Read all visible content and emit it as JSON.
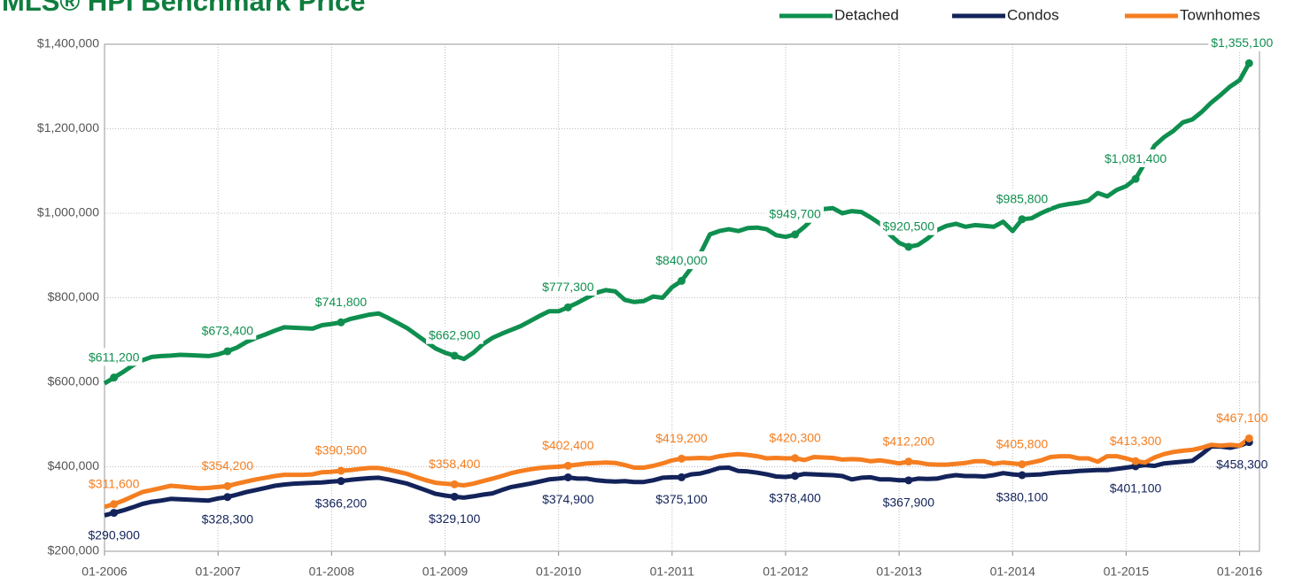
{
  "chart_data": {
    "type": "line",
    "title": "MLS® HPI Benchmark Price",
    "categories": [
      "01-2006",
      null,
      null,
      null,
      null,
      null,
      null,
      null,
      null,
      null,
      null,
      null,
      "01-2007",
      null,
      null,
      null,
      null,
      null,
      null,
      null,
      null,
      null,
      null,
      null,
      "01-2008",
      null,
      null,
      null,
      null,
      null,
      null,
      null,
      null,
      null,
      null,
      null,
      "01-2009",
      null,
      null,
      null,
      null,
      null,
      null,
      null,
      null,
      null,
      null,
      null,
      "01-2010",
      null,
      null,
      null,
      null,
      null,
      null,
      null,
      null,
      null,
      null,
      null,
      "01-2011",
      null,
      null,
      null,
      null,
      null,
      null,
      null,
      null,
      null,
      null,
      null,
      "01-2012",
      null,
      null,
      null,
      null,
      null,
      null,
      null,
      null,
      null,
      null,
      null,
      "01-2013",
      null,
      null,
      null,
      null,
      null,
      null,
      null,
      null,
      null,
      null,
      null,
      "01-2014",
      null,
      null,
      null,
      null,
      null,
      null,
      null,
      null,
      null,
      null,
      null,
      "01-2015",
      null,
      null,
      null,
      null,
      null,
      null,
      null,
      null,
      null,
      null,
      null,
      "01-2016",
      null
    ],
    "series": [
      {
        "name": "Detached",
        "color": "#0f8f4f",
        "label_pos": "above",
        "values": [
          597000,
          611200,
          625000,
          640000,
          652000,
          660000,
          662000,
          663000,
          665000,
          664000,
          663000,
          662000,
          666000,
          673400,
          682000,
          695000,
          705000,
          713000,
          722000,
          730000,
          729000,
          728000,
          727000,
          735000,
          738000,
          741800,
          750000,
          755000,
          760000,
          763000,
          752000,
          740000,
          728000,
          712000,
          696000,
          680000,
          670000,
          662900,
          655000,
          670000,
          690000,
          705000,
          715000,
          724000,
          733000,
          745000,
          757000,
          768000,
          768000,
          777300,
          788000,
          800000,
          812000,
          818000,
          815000,
          795000,
          790000,
          792000,
          803000,
          800000,
          825000,
          840000,
          870000,
          905000,
          950000,
          958000,
          962000,
          958000,
          965000,
          966000,
          962000,
          948000,
          944000,
          949700,
          968000,
          990000,
          1010000,
          1012000,
          1000000,
          1005000,
          1003000,
          990000,
          975000,
          950000,
          930000,
          920500,
          925000,
          940000,
          960000,
          970000,
          975000,
          968000,
          972000,
          970000,
          968000,
          980000,
          958000,
          985800,
          988000,
          1000000,
          1010000,
          1018000,
          1022000,
          1025000,
          1030000,
          1048000,
          1040000,
          1055000,
          1064000,
          1081400,
          1120000,
          1160000,
          1180000,
          1195000,
          1215000,
          1222000,
          1240000,
          1262000,
          1280000,
          1300000,
          1315000,
          1355100
        ],
        "value_labels": [
          null,
          "$611,200",
          null,
          null,
          null,
          null,
          null,
          null,
          null,
          null,
          null,
          null,
          null,
          "$673,400",
          null,
          null,
          null,
          null,
          null,
          null,
          null,
          null,
          null,
          null,
          null,
          "$741,800",
          null,
          null,
          null,
          null,
          null,
          null,
          null,
          null,
          null,
          null,
          null,
          "$662,900",
          null,
          null,
          null,
          null,
          null,
          null,
          null,
          null,
          null,
          null,
          null,
          "$777,300",
          null,
          null,
          null,
          null,
          null,
          null,
          null,
          null,
          null,
          null,
          null,
          "$840,000",
          null,
          null,
          null,
          null,
          null,
          null,
          null,
          null,
          null,
          null,
          null,
          "$949,700",
          null,
          null,
          null,
          null,
          null,
          null,
          null,
          null,
          null,
          null,
          null,
          "$920,500",
          null,
          null,
          null,
          null,
          null,
          null,
          null,
          null,
          null,
          null,
          null,
          "$985,800",
          null,
          null,
          null,
          null,
          null,
          null,
          null,
          null,
          null,
          null,
          null,
          "$1,081,400",
          null,
          null,
          null,
          null,
          null,
          null,
          null,
          null,
          null,
          null,
          null,
          "$1,355,100"
        ]
      },
      {
        "name": "Condos",
        "color": "#13235a",
        "label_pos": "below",
        "values": [
          285000,
          290900,
          297000,
          304000,
          312000,
          317000,
          320000,
          324000,
          323000,
          322000,
          321000,
          320000,
          325000,
          328300,
          334000,
          340000,
          345000,
          350000,
          355000,
          358000,
          360000,
          361000,
          362000,
          363000,
          365000,
          366200,
          369000,
          371000,
          373000,
          374000,
          370000,
          365000,
          360000,
          352000,
          344000,
          336000,
          332000,
          329100,
          327000,
          330000,
          334000,
          337000,
          345000,
          352000,
          356000,
          360000,
          365000,
          370000,
          372000,
          374900,
          372000,
          372000,
          368000,
          366000,
          365000,
          366000,
          364000,
          364000,
          368000,
          374000,
          375000,
          375100,
          382000,
          384000,
          390000,
          397000,
          398000,
          390000,
          389000,
          386000,
          382000,
          377000,
          376000,
          378400,
          383000,
          382000,
          381000,
          380000,
          378000,
          370000,
          374000,
          375000,
          370000,
          370000,
          368000,
          367900,
          372000,
          371000,
          372000,
          377000,
          380000,
          378000,
          378000,
          377000,
          380000,
          385000,
          382000,
          380100,
          381000,
          382000,
          385000,
          387000,
          388000,
          390000,
          391000,
          392000,
          392000,
          395000,
          398000,
          401100,
          404000,
          402000,
          408000,
          410000,
          412000,
          414000,
          430000,
          448000,
          448000,
          445000,
          450000,
          458300
        ],
        "value_labels": [
          null,
          "$290,900",
          null,
          null,
          null,
          null,
          null,
          null,
          null,
          null,
          null,
          null,
          null,
          "$328,300",
          null,
          null,
          null,
          null,
          null,
          null,
          null,
          null,
          null,
          null,
          null,
          "$366,200",
          null,
          null,
          null,
          null,
          null,
          null,
          null,
          null,
          null,
          null,
          null,
          "$329,100",
          null,
          null,
          null,
          null,
          null,
          null,
          null,
          null,
          null,
          null,
          null,
          "$374,900",
          null,
          null,
          null,
          null,
          null,
          null,
          null,
          null,
          null,
          null,
          null,
          "$375,100",
          null,
          null,
          null,
          null,
          null,
          null,
          null,
          null,
          null,
          null,
          null,
          "$378,400",
          null,
          null,
          null,
          null,
          null,
          null,
          null,
          null,
          null,
          null,
          null,
          "$367,900",
          null,
          null,
          null,
          null,
          null,
          null,
          null,
          null,
          null,
          null,
          null,
          "$380,100",
          null,
          null,
          null,
          null,
          null,
          null,
          null,
          null,
          null,
          null,
          null,
          "$401,100",
          null,
          null,
          null,
          null,
          null,
          null,
          null,
          null,
          null,
          null,
          null,
          "$458,300"
        ]
      },
      {
        "name": "Townhomes",
        "color": "#f57e20",
        "label_pos": "above",
        "values": [
          305000,
          311600,
          320000,
          330000,
          340000,
          345000,
          350000,
          355000,
          353000,
          351000,
          349000,
          350000,
          352000,
          354200,
          360000,
          365000,
          370000,
          374000,
          378000,
          381000,
          381000,
          381000,
          382000,
          387000,
          388000,
          390500,
          392000,
          395000,
          397000,
          397000,
          393000,
          388000,
          383000,
          375000,
          368000,
          362000,
          360000,
          358400,
          356000,
          360000,
          366000,
          372000,
          378000,
          385000,
          390000,
          394000,
          397000,
          399000,
          400000,
          402400,
          405000,
          408000,
          409000,
          410000,
          409000,
          404000,
          398000,
          398000,
          402000,
          408000,
          415000,
          419200,
          420000,
          421000,
          420000,
          425000,
          428000,
          430000,
          428000,
          425000,
          420000,
          421000,
          420000,
          420300,
          416000,
          423000,
          422000,
          421000,
          417000,
          418000,
          417000,
          413000,
          415000,
          412000,
          408000,
          412200,
          410000,
          406000,
          405000,
          405000,
          407000,
          409000,
          413000,
          413000,
          407000,
          410000,
          408000,
          405800,
          410000,
          415000,
          423000,
          425000,
          425000,
          420000,
          420000,
          412000,
          425000,
          425000,
          420000,
          413300,
          410000,
          422000,
          430000,
          435000,
          438000,
          440000,
          445000,
          452000,
          450000,
          452000,
          450000,
          467100
        ],
        "value_labels": [
          null,
          "$311,600",
          null,
          null,
          null,
          null,
          null,
          null,
          null,
          null,
          null,
          null,
          null,
          "$354,200",
          null,
          null,
          null,
          null,
          null,
          null,
          null,
          null,
          null,
          null,
          null,
          "$390,500",
          null,
          null,
          null,
          null,
          null,
          null,
          null,
          null,
          null,
          null,
          null,
          "$358,400",
          null,
          null,
          null,
          null,
          null,
          null,
          null,
          null,
          null,
          null,
          null,
          "$402,400",
          null,
          null,
          null,
          null,
          null,
          null,
          null,
          null,
          null,
          null,
          null,
          "$419,200",
          null,
          null,
          null,
          null,
          null,
          null,
          null,
          null,
          null,
          null,
          null,
          "$420,300",
          null,
          null,
          null,
          null,
          null,
          null,
          null,
          null,
          null,
          null,
          null,
          "$412,200",
          null,
          null,
          null,
          null,
          null,
          null,
          null,
          null,
          null,
          null,
          null,
          "$405,800",
          null,
          null,
          null,
          null,
          null,
          null,
          null,
          null,
          null,
          null,
          null,
          "$413,300",
          null,
          null,
          null,
          null,
          null,
          null,
          null,
          null,
          null,
          null,
          null,
          "$467,100"
        ]
      }
    ],
    "ylim": [
      200000,
      1400000
    ],
    "yticks": [
      {
        "value": 200000,
        "label": "$200,000"
      },
      {
        "value": 400000,
        "label": "$400,000"
      },
      {
        "value": 600000,
        "label": "$600,000"
      },
      {
        "value": 800000,
        "label": "$800,000"
      },
      {
        "value": 1000000,
        "label": "$1,000,000"
      },
      {
        "value": 1200000,
        "label": "$1,200,000"
      },
      {
        "value": 1400000,
        "label": "$1,400,000"
      }
    ],
    "grid": true,
    "legend": "top-right"
  }
}
